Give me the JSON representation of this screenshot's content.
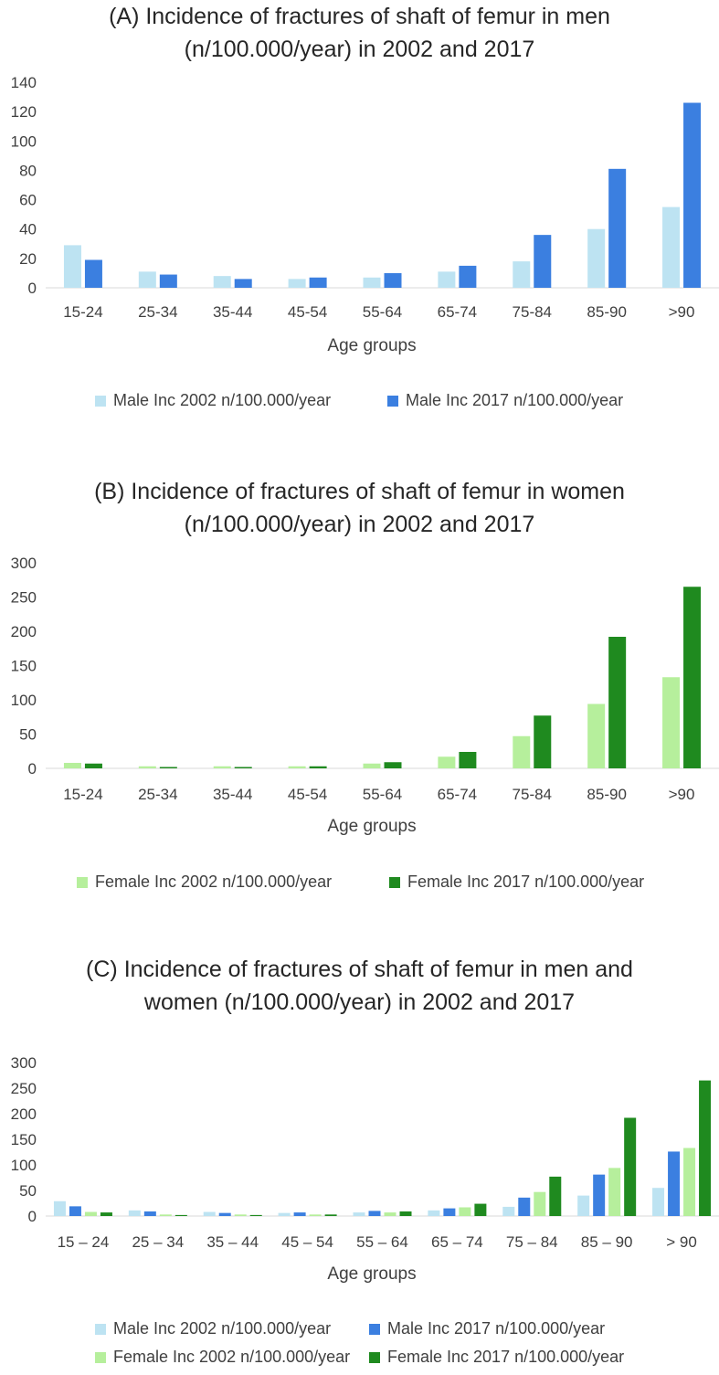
{
  "colors": {
    "male_2002": "#bde3f2",
    "male_2017": "#3b7fe0",
    "female_2002": "#b6ef9c",
    "female_2017": "#1f8a1f"
  },
  "chart_data": [
    {
      "type": "bar",
      "title_lines": [
        "(A) Incidence of fractures of shaft of femur in men",
        "(n/100.000/year) in 2002 and 2017"
      ],
      "xlabel": "Age groups",
      "ylabel": "",
      "ylim": [
        0,
        140
      ],
      "yticks": [
        0,
        20,
        40,
        60,
        80,
        100,
        120,
        140
      ],
      "categories": [
        "15-24",
        "25-34",
        "35-44",
        "45-54",
        "55-64",
        "65-74",
        "75-84",
        "85-90",
        ">90"
      ],
      "series": [
        {
          "name": "Male Inc 2002 n/100.000/year",
          "color_key": "male_2002",
          "values": [
            29,
            11,
            8,
            6,
            7,
            11,
            18,
            40,
            55
          ]
        },
        {
          "name": "Male Inc 2017 n/100.000/year",
          "color_key": "male_2017",
          "values": [
            19,
            9,
            6,
            7,
            10,
            15,
            36,
            81,
            126
          ]
        }
      ],
      "legend": "bottom"
    },
    {
      "type": "bar",
      "title_lines": [
        "(B) Incidence of fractures of shaft of femur in women",
        "(n/100.000/year) in 2002 and 2017"
      ],
      "xlabel": "Age groups",
      "ylabel": "",
      "ylim": [
        0,
        300
      ],
      "yticks": [
        0,
        50,
        100,
        150,
        200,
        250,
        300
      ],
      "categories": [
        "15-24",
        "25-34",
        "35-44",
        "45-54",
        "55-64",
        "65-74",
        "75-84",
        "85-90",
        ">90"
      ],
      "series": [
        {
          "name": "Female Inc 2002 n/100.000/year",
          "color_key": "female_2002",
          "values": [
            8,
            3,
            3,
            3,
            7,
            17,
            47,
            94,
            133
          ]
        },
        {
          "name": "Female Inc 2017 n/100.000/year",
          "color_key": "female_2017",
          "values": [
            7,
            2,
            2,
            3,
            9,
            24,
            77,
            192,
            265
          ]
        }
      ],
      "legend": "bottom"
    },
    {
      "type": "bar",
      "title_lines": [
        "(C) Incidence of fractures of shaft of femur in men and",
        "women (n/100.000/year) in 2002 and 2017"
      ],
      "xlabel": "Age groups",
      "ylabel": "",
      "ylim": [
        0,
        300
      ],
      "yticks": [
        0,
        50,
        100,
        150,
        200,
        250,
        300
      ],
      "categories": [
        "15 – 24",
        "25 – 34",
        "35 – 44",
        "45 – 54",
        "55 – 64",
        "65 – 74",
        "75 – 84",
        "85 – 90",
        "> 90"
      ],
      "series": [
        {
          "name": "Male Inc 2002 n/100.000/year",
          "color_key": "male_2002",
          "values": [
            29,
            11,
            8,
            6,
            7,
            11,
            18,
            40,
            55
          ]
        },
        {
          "name": "Male Inc 2017 n/100.000/year",
          "color_key": "male_2017",
          "values": [
            19,
            9,
            6,
            7,
            10,
            15,
            36,
            81,
            126
          ]
        },
        {
          "name": "Female Inc 2002 n/100.000/year",
          "color_key": "female_2002",
          "values": [
            8,
            3,
            3,
            3,
            7,
            17,
            47,
            94,
            133
          ]
        },
        {
          "name": "Female Inc 2017 n/100.000/year",
          "color_key": "female_2017",
          "values": [
            7,
            2,
            2,
            3,
            9,
            24,
            77,
            192,
            265
          ]
        }
      ],
      "legend": "bottom"
    }
  ]
}
